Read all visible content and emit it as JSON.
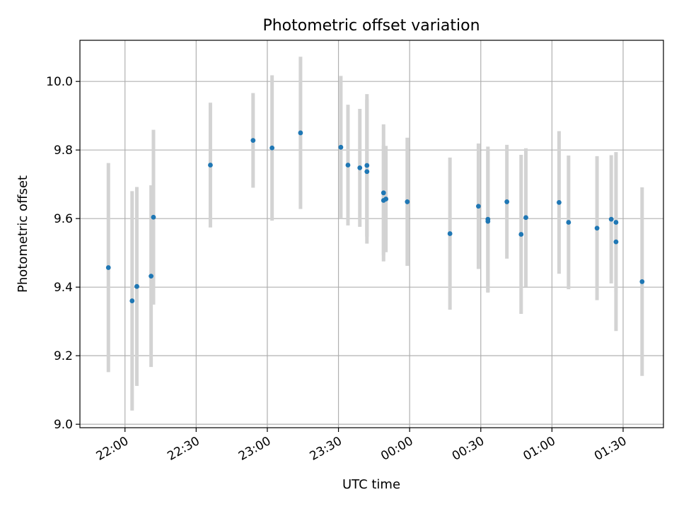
{
  "chart_data": {
    "type": "scatter",
    "title": "Photometric offset variation",
    "xlabel": "UTC time",
    "ylabel": "Photometric offset",
    "ylim": [
      8.99,
      10.12
    ],
    "xlim": [
      "21:41",
      "25:47"
    ],
    "grid": true,
    "x_axis_kind": "time",
    "x_ticks": [
      "22:00",
      "22:30",
      "23:00",
      "23:30",
      "00:00",
      "00:30",
      "01:00",
      "01:30"
    ],
    "y_ticks": [
      "9.0",
      "9.2",
      "9.4",
      "9.6",
      "9.8",
      "10.0"
    ],
    "series_color": "#1f77b4",
    "errorbar_color": "#d3d3d3",
    "points": [
      {
        "x": "21:53",
        "y": 9.457,
        "err": 0.305
      },
      {
        "x": "22:03",
        "y": 9.36,
        "err": 0.32
      },
      {
        "x": "22:05",
        "y": 9.402,
        "err": 0.29
      },
      {
        "x": "22:11",
        "y": 9.432,
        "err": 0.265
      },
      {
        "x": "22:12",
        "y": 9.604,
        "err": 0.255
      },
      {
        "x": "22:36",
        "y": 9.756,
        "err": 0.182
      },
      {
        "x": "22:54",
        "y": 9.828,
        "err": 0.138
      },
      {
        "x": "23:02",
        "y": 9.806,
        "err": 0.212
      },
      {
        "x": "23:14",
        "y": 9.85,
        "err": 0.222
      },
      {
        "x": "23:31",
        "y": 9.808,
        "err": 0.208
      },
      {
        "x": "23:34",
        "y": 9.756,
        "err": 0.176
      },
      {
        "x": "23:39",
        "y": 9.748,
        "err": 0.172
      },
      {
        "x": "23:42",
        "y": 9.755,
        "err": 0.208
      },
      {
        "x": "23:42",
        "y": 9.737,
        "err": 0.21
      },
      {
        "x": "23:49",
        "y": 9.653,
        "err": 0.16
      },
      {
        "x": "23:49",
        "y": 9.675,
        "err": 0.2
      },
      {
        "x": "23:50",
        "y": 9.657,
        "err": 0.155
      },
      {
        "x": "23:59",
        "y": 9.649,
        "err": 0.187
      },
      {
        "x": "00:17",
        "y": 9.556,
        "err": 0.222
      },
      {
        "x": "00:29",
        "y": 9.636,
        "err": 0.183
      },
      {
        "x": "00:33",
        "y": 9.592,
        "err": 0.208
      },
      {
        "x": "00:33",
        "y": 9.598,
        "err": 0.212
      },
      {
        "x": "00:41",
        "y": 9.649,
        "err": 0.166
      },
      {
        "x": "00:47",
        "y": 9.554,
        "err": 0.232
      },
      {
        "x": "00:49",
        "y": 9.603,
        "err": 0.202
      },
      {
        "x": "01:03",
        "y": 9.647,
        "err": 0.208
      },
      {
        "x": "01:07",
        "y": 9.589,
        "err": 0.195
      },
      {
        "x": "01:19",
        "y": 9.572,
        "err": 0.21
      },
      {
        "x": "01:25",
        "y": 9.598,
        "err": 0.187
      },
      {
        "x": "01:27",
        "y": 9.532,
        "err": 0.26
      },
      {
        "x": "01:27",
        "y": 9.589,
        "err": 0.205
      },
      {
        "x": "01:38",
        "y": 9.416,
        "err": 0.275
      }
    ]
  }
}
